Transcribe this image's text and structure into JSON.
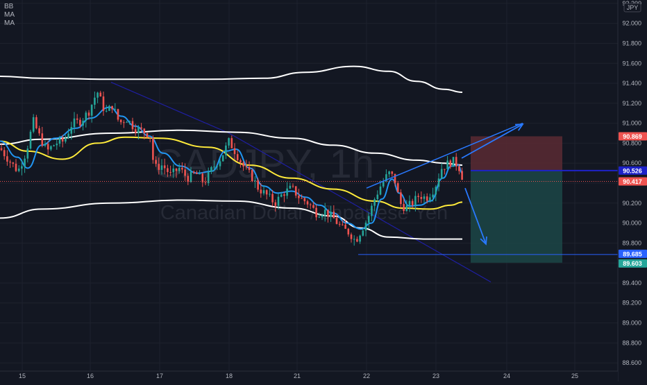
{
  "legend": {
    "items": [
      "BB",
      "MA",
      "MA"
    ]
  },
  "watermark": {
    "symbol": "CADJPY, 1h",
    "name": "Canadian Dollar / Japanese Yen"
  },
  "axis_currency": "JPY",
  "colors": {
    "background": "#131722",
    "up": "#26a69a",
    "down": "#ef5350",
    "bollinger": "#ffffff",
    "ma_fast": "#2196f3",
    "ma_slow": "#ffeb3b",
    "trendline": "#1f1fa3",
    "arrow": "#2979ff",
    "stop_zone": "#5a2a32",
    "target_zone": "#1c4747",
    "last_price": "#ef5350",
    "entry": "#1e22c8",
    "target": "#2962ff",
    "target2": "#26a69a"
  },
  "chart_data": {
    "type": "candlestick",
    "symbol": "CADJPY",
    "interval": "1h",
    "x_ticks": [
      "15",
      "16",
      "17",
      "18",
      "21",
      "22",
      "23",
      "24",
      "25"
    ],
    "y_ticks": [
      "92.200",
      "92.000",
      "91.800",
      "91.600",
      "91.400",
      "91.200",
      "91.000",
      "90.800",
      "90.600",
      "90.400",
      "90.200",
      "90.000",
      "89.800",
      "89.600",
      "89.400",
      "89.200",
      "89.000",
      "88.800",
      "88.600"
    ],
    "ylim": [
      88.58,
      92.22
    ],
    "price_labels": [
      {
        "value": "90.869",
        "role": "stop-loss"
      },
      {
        "value": "90.526",
        "role": "entry"
      },
      {
        "value": "90.417",
        "role": "last-price"
      },
      {
        "value": "89.685",
        "role": "target"
      },
      {
        "value": "89.603",
        "role": "take-profit"
      }
    ],
    "close_path": [
      [
        0,
        90.75
      ],
      [
        14,
        90.62
      ],
      [
        26,
        90.52
      ],
      [
        38,
        90.72
      ],
      [
        48,
        91.02
      ],
      [
        58,
        90.85
      ],
      [
        68,
        90.72
      ],
      [
        80,
        90.8
      ],
      [
        92,
        90.82
      ],
      [
        104,
        91.0
      ],
      [
        116,
        91.02
      ],
      [
        128,
        91.12
      ],
      [
        140,
        91.32
      ],
      [
        152,
        91.1
      ],
      [
        162,
        91.18
      ],
      [
        172,
        91.0
      ],
      [
        182,
        91.05
      ],
      [
        194,
        90.95
      ],
      [
        206,
        90.92
      ],
      [
        216,
        90.88
      ],
      [
        222,
        90.55
      ],
      [
        234,
        90.58
      ],
      [
        246,
        90.48
      ],
      [
        258,
        90.55
      ],
      [
        270,
        90.45
      ],
      [
        282,
        90.5
      ],
      [
        294,
        90.4
      ],
      [
        306,
        90.55
      ],
      [
        318,
        90.65
      ],
      [
        330,
        90.82
      ],
      [
        340,
        90.7
      ],
      [
        352,
        90.55
      ],
      [
        364,
        90.45
      ],
      [
        372,
        90.35
      ],
      [
        384,
        90.28
      ],
      [
        396,
        90.2
      ],
      [
        408,
        90.3
      ],
      [
        420,
        90.35
      ],
      [
        432,
        90.25
      ],
      [
        444,
        90.2
      ],
      [
        456,
        90.1
      ],
      [
        468,
        90.12
      ],
      [
        480,
        90.05
      ],
      [
        492,
        89.95
      ],
      [
        504,
        89.9
      ],
      [
        512,
        89.82
      ],
      [
        522,
        89.95
      ],
      [
        530,
        90.05
      ],
      [
        540,
        90.25
      ],
      [
        550,
        90.4
      ],
      [
        560,
        90.5
      ],
      [
        568,
        90.45
      ],
      [
        576,
        90.2
      ],
      [
        584,
        90.15
      ],
      [
        594,
        90.2
      ],
      [
        604,
        90.28
      ],
      [
        614,
        90.25
      ],
      [
        626,
        90.35
      ],
      [
        636,
        90.55
      ],
      [
        646,
        90.6
      ],
      [
        654,
        90.62
      ],
      [
        662,
        90.55
      ],
      [
        668,
        90.417
      ]
    ],
    "indicators": {
      "bollinger_upper": [
        [
          0,
          91.47
        ],
        [
          60,
          91.45
        ],
        [
          160,
          91.44
        ],
        [
          300,
          91.44
        ],
        [
          380,
          91.45
        ],
        [
          440,
          91.51
        ],
        [
          510,
          91.57
        ],
        [
          560,
          91.52
        ],
        [
          600,
          91.42
        ],
        [
          640,
          91.34
        ],
        [
          666,
          91.31
        ]
      ],
      "bollinger_middle": [
        [
          0,
          90.79
        ],
        [
          60,
          90.84
        ],
        [
          160,
          90.9
        ],
        [
          260,
          90.93
        ],
        [
          340,
          90.91
        ],
        [
          420,
          90.85
        ],
        [
          480,
          90.78
        ],
        [
          540,
          90.7
        ],
        [
          600,
          90.63
        ],
        [
          640,
          90.6
        ],
        [
          666,
          90.58
        ]
      ],
      "bollinger_lower": [
        [
          0,
          90.05
        ],
        [
          60,
          90.14
        ],
        [
          160,
          90.2
        ],
        [
          260,
          90.23
        ],
        [
          340,
          90.22
        ],
        [
          420,
          90.15
        ],
        [
          480,
          90.07
        ],
        [
          520,
          89.95
        ],
        [
          560,
          89.86
        ],
        [
          610,
          89.84
        ],
        [
          666,
          89.84
        ]
      ],
      "ma_slow": [
        [
          0,
          90.82
        ],
        [
          40,
          90.72
        ],
        [
          90,
          90.64
        ],
        [
          140,
          90.8
        ],
        [
          180,
          90.86
        ],
        [
          230,
          90.85
        ],
        [
          300,
          90.76
        ],
        [
          360,
          90.58
        ],
        [
          420,
          90.45
        ],
        [
          480,
          90.34
        ],
        [
          540,
          90.22
        ],
        [
          580,
          90.15
        ],
        [
          620,
          90.14
        ],
        [
          650,
          90.18
        ],
        [
          666,
          90.21
        ]
      ],
      "ma_fast": [
        [
          0,
          90.82
        ],
        [
          25,
          90.66
        ],
        [
          40,
          90.55
        ],
        [
          60,
          90.78
        ],
        [
          80,
          90.85
        ],
        [
          110,
          90.95
        ],
        [
          130,
          91.05
        ],
        [
          158,
          91.16
        ],
        [
          175,
          91.07
        ],
        [
          195,
          90.97
        ],
        [
          215,
          90.87
        ],
        [
          235,
          90.7
        ],
        [
          260,
          90.57
        ],
        [
          285,
          90.5
        ],
        [
          305,
          90.52
        ],
        [
          325,
          90.72
        ],
        [
          340,
          90.74
        ],
        [
          360,
          90.55
        ],
        [
          380,
          90.37
        ],
        [
          400,
          90.3
        ],
        [
          420,
          90.32
        ],
        [
          440,
          90.26
        ],
        [
          460,
          90.18
        ],
        [
          480,
          90.1
        ],
        [
          500,
          90.0
        ],
        [
          520,
          89.94
        ],
        [
          535,
          90.0
        ],
        [
          550,
          90.24
        ],
        [
          565,
          90.44
        ],
        [
          575,
          90.3
        ],
        [
          590,
          90.17
        ],
        [
          605,
          90.18
        ],
        [
          620,
          90.22
        ],
        [
          638,
          90.45
        ],
        [
          650,
          90.57
        ],
        [
          660,
          90.58
        ],
        [
          666,
          90.5
        ]
      ]
    },
    "drawings": {
      "trendline_upper": [
        [
          160,
          91.41
        ],
        [
          330,
          90.9
        ]
      ],
      "trendline_lower": [
        [
          330,
          90.9
        ],
        [
          707,
          89.41
        ]
      ],
      "channel_up": [
        [
          528,
          90.35
        ],
        [
          753,
          91.0
        ]
      ],
      "arrow_up": [
        [
          665,
          90.65
        ],
        [
          753,
          90.99
        ]
      ],
      "arrow_down": [
        [
          670,
          90.35
        ],
        [
          700,
          89.79
        ]
      ],
      "horizontal_target": [
        [
          516,
          89.685
        ],
        [
          890,
          89.685
        ]
      ],
      "position": {
        "x_start": 678,
        "x_end": 810,
        "stop": 90.869,
        "entry": 90.526,
        "target": 89.603
      }
    }
  }
}
